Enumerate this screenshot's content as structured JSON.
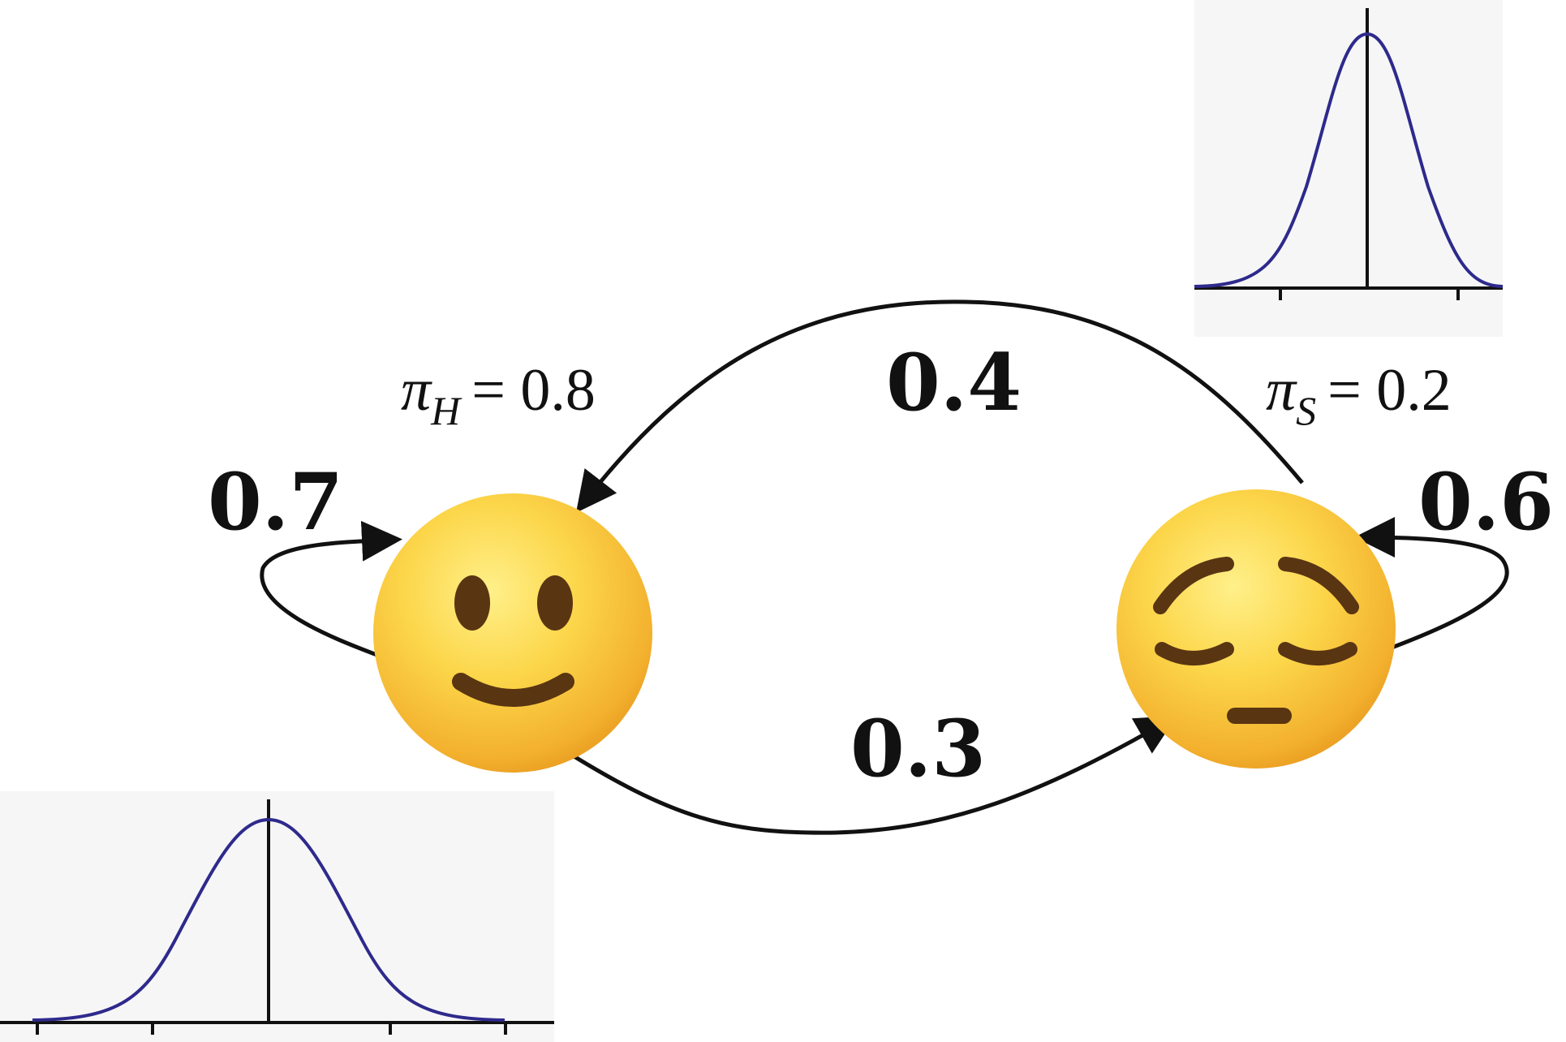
{
  "states": {
    "happy": {
      "emoji": "happy-face",
      "pi_symbol": "π",
      "pi_sub": "H",
      "pi_value": "= 0.8"
    },
    "sad": {
      "emoji": "pensive-face",
      "pi_symbol": "π",
      "pi_sub": "S",
      "pi_value": "= 0.2"
    }
  },
  "transitions": {
    "happy_to_happy": "0.7",
    "happy_to_sad": "0.3",
    "sad_to_happy": "0.4",
    "sad_to_sad": "0.6"
  },
  "colors": {
    "edge": "#111111",
    "gaussian_curve": "#2e2a8c",
    "plot_background": "#f6f6f6",
    "face_yellow": "#fbcd3c",
    "face_shadow": "#e8951a",
    "feature_brown": "#5a3512"
  }
}
